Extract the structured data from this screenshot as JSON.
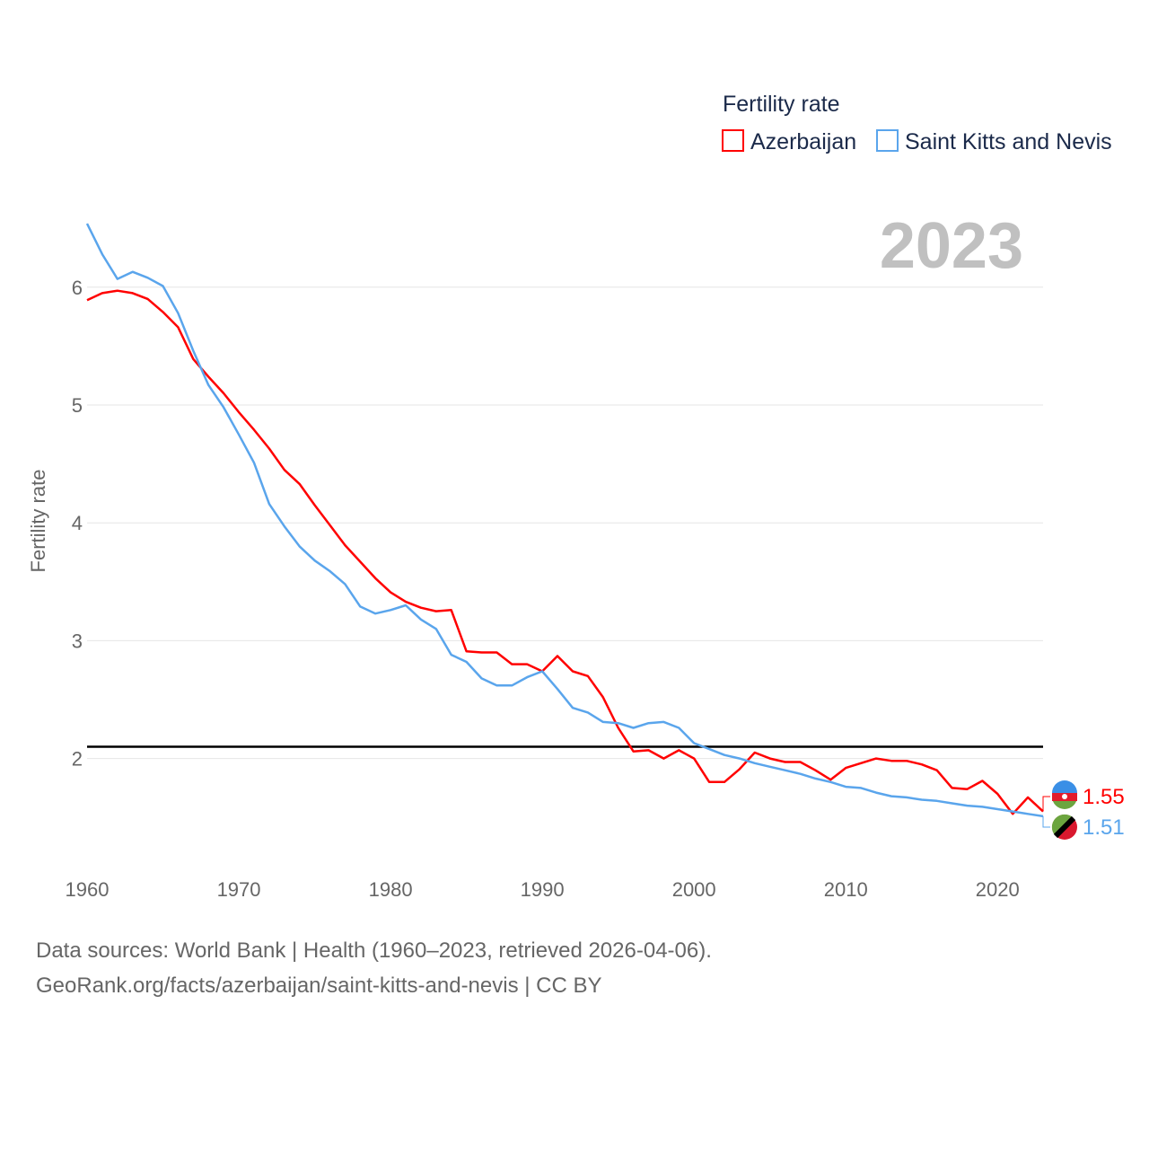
{
  "chart_data": {
    "type": "line",
    "legend_title": "Fertility rate",
    "legend_placement": "top-right",
    "ylabel": "Fertility rate",
    "year_label": "2023",
    "ylim": [
      1.0,
      6.7
    ],
    "xlim": [
      1960,
      2023
    ],
    "yticks": [
      2,
      3,
      4,
      5,
      6
    ],
    "xticks": [
      1960,
      1970,
      1980,
      1990,
      2000,
      2010,
      2020
    ],
    "reference_line": 2.1,
    "grid": true,
    "x": [
      1960,
      1961,
      1962,
      1963,
      1964,
      1965,
      1966,
      1967,
      1968,
      1969,
      1970,
      1971,
      1972,
      1973,
      1974,
      1975,
      1976,
      1977,
      1978,
      1979,
      1980,
      1981,
      1982,
      1983,
      1984,
      1985,
      1986,
      1987,
      1988,
      1989,
      1990,
      1991,
      1992,
      1993,
      1994,
      1995,
      1996,
      1997,
      1998,
      1999,
      2000,
      2001,
      2002,
      2003,
      2004,
      2005,
      2006,
      2007,
      2008,
      2009,
      2010,
      2011,
      2012,
      2013,
      2014,
      2015,
      2016,
      2017,
      2018,
      2019,
      2020,
      2021,
      2022,
      2023
    ],
    "series": [
      {
        "name": "Azerbaijan",
        "color": "#ff0000",
        "end_label": "1.55",
        "values": [
          5.89,
          5.95,
          5.97,
          5.95,
          5.9,
          5.79,
          5.66,
          5.39,
          5.24,
          5.1,
          4.94,
          4.79,
          4.63,
          4.45,
          4.33,
          4.15,
          3.98,
          3.81,
          3.67,
          3.53,
          3.41,
          3.33,
          3.28,
          3.25,
          3.26,
          2.91,
          2.9,
          2.9,
          2.8,
          2.8,
          2.74,
          2.87,
          2.74,
          2.7,
          2.52,
          2.26,
          2.06,
          2.07,
          2.0,
          2.07,
          2.0,
          1.8,
          1.8,
          1.91,
          2.05,
          2.0,
          1.97,
          1.97,
          1.9,
          1.82,
          1.92,
          1.96,
          2.0,
          1.98,
          1.98,
          1.95,
          1.9,
          1.75,
          1.74,
          1.81,
          1.7,
          1.53,
          1.67,
          1.55
        ]
      },
      {
        "name": "Saint Kitts and Nevis",
        "color": "#5aa5ec",
        "end_label": "1.51",
        "values": [
          6.54,
          6.28,
          6.07,
          6.13,
          6.08,
          6.01,
          5.78,
          5.46,
          5.17,
          4.98,
          4.75,
          4.51,
          4.16,
          3.97,
          3.8,
          3.68,
          3.59,
          3.48,
          3.29,
          3.23,
          3.26,
          3.3,
          3.18,
          3.1,
          2.88,
          2.82,
          2.68,
          2.62,
          2.62,
          2.69,
          2.74,
          2.59,
          2.43,
          2.39,
          2.31,
          2.3,
          2.26,
          2.3,
          2.31,
          2.26,
          2.13,
          2.08,
          2.03,
          2.0,
          1.96,
          1.93,
          1.9,
          1.87,
          1.83,
          1.8,
          1.76,
          1.75,
          1.71,
          1.68,
          1.67,
          1.65,
          1.64,
          1.62,
          1.6,
          1.59,
          1.57,
          1.55,
          1.53,
          1.51
        ]
      }
    ]
  },
  "footer": {
    "line1": "Data sources: World Bank | Health (1960–2023, retrieved 2026-04-06).",
    "line2": "GeoRank.org/facts/azerbaijan/saint-kitts-and-nevis | CC BY"
  }
}
